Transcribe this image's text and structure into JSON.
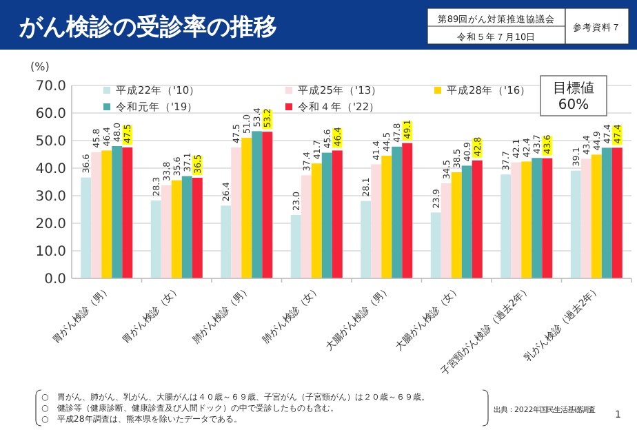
{
  "chart_data": {
    "type": "bar",
    "title": "がん検診の受診率の推移",
    "ylabel": "(%)",
    "categories": [
      "胃がん検診（男）",
      "胃がん検診（女）",
      "肺がん検診（男）",
      "肺がん検診（女）",
      "大腸がん検診（男）",
      "大腸がん検診（女）",
      "子宮頸がん検診（過去2年）",
      "乳がん検診（過去2年）"
    ],
    "series": [
      {
        "name": "平成22年（'10）",
        "color": "#c6e5e6",
        "values": [
          36.6,
          28.3,
          26.4,
          23.0,
          28.1,
          23.9,
          37.7,
          39.1
        ],
        "value_labels": [
          "36.6",
          "28.3",
          "26.4",
          "23.0",
          "28.1",
          "23.9",
          "37.7",
          "39.1"
        ]
      },
      {
        "name": "平成25年（'13）",
        "color": "#fbdde0",
        "values": [
          45.8,
          33.8,
          47.5,
          37.4,
          41.4,
          34.5,
          42.1,
          43.4
        ],
        "value_labels": [
          "45.8",
          "33.8",
          "47.5",
          "37.4",
          "41.4",
          "34.5",
          "42.1",
          "43.4"
        ]
      },
      {
        "name": "平成28年（'16）",
        "color": "#ffd400",
        "values": [
          46.4,
          35.6,
          51.0,
          41.7,
          44.5,
          38.5,
          42.4,
          44.9
        ],
        "value_labels": [
          "46.4",
          "35.6",
          "51.0",
          "41.7",
          "44.5",
          "38.5",
          "42.4",
          "44.9"
        ]
      },
      {
        "name": "令和元年（'19）",
        "color": "#4bacaa",
        "values": [
          48.0,
          37.1,
          53.4,
          45.6,
          47.8,
          40.9,
          43.7,
          47.4
        ],
        "value_labels": [
          "48.0",
          "37.1",
          "53.4",
          "45.6",
          "47.8",
          "40.9",
          "43.7",
          "47.4"
        ]
      },
      {
        "name": "令和４年（'22）",
        "color": "#f5243a",
        "values": [
          47.5,
          36.5,
          53.2,
          46.4,
          49.1,
          42.8,
          43.6,
          47.4
        ],
        "value_labels": [
          "47.5",
          "36.5",
          "53.2",
          "46.4",
          "49.1",
          "42.8",
          "43.6",
          "47.4"
        ]
      }
    ],
    "ylim": [
      0,
      70
    ],
    "yticks": [
      {
        "value": 0,
        "label": "0.0"
      },
      {
        "value": 10,
        "label": "10.0"
      },
      {
        "value": 20,
        "label": "20.0"
      },
      {
        "value": 30,
        "label": "30.0"
      },
      {
        "value": 40,
        "label": "40.0"
      },
      {
        "value": 50,
        "label": "50.0"
      },
      {
        "value": 60,
        "label": "60.0"
      },
      {
        "value": 70,
        "label": "70.0"
      }
    ],
    "grid": "y",
    "legend": "top left",
    "annotations": [
      "第89回がん対策推進協議会",
      "令和５年７月10日",
      "参考資料７",
      "目標値\n60%",
      "○　胃がん、肺がん、乳がん、大腸がんは４０歳～６９歳、子宮がん（子宮頸がん）は２０歳～６９歳。",
      "○　健診等（健康診断、健康診査及び人間ドック）の中で受診したものも含む。",
      "○　平成28年調査は、熊本県を除いたデータである。",
      "出典：2022年国民生活基礎調査",
      "1"
    ]
  }
}
